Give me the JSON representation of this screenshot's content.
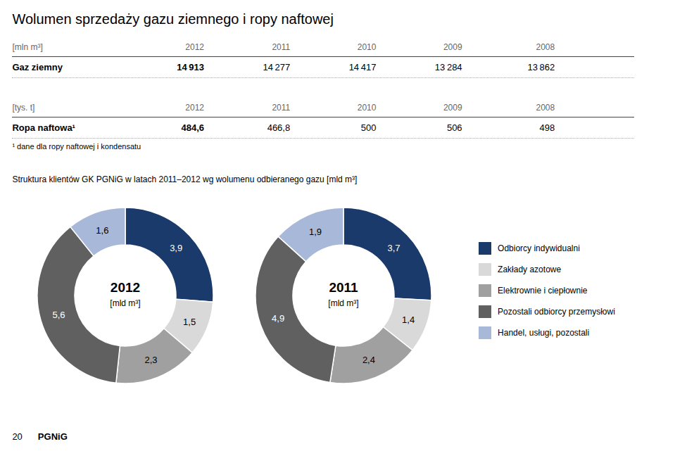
{
  "chart_data": [
    {
      "type": "table",
      "title": "Wolumen sprzedaży gazu ziemnego i ropy naftowej",
      "subtitle": "[mln m³]",
      "categories": [
        "2012",
        "2011",
        "2010",
        "2009",
        "2008"
      ],
      "series": [
        {
          "name": "Gaz ziemny",
          "values": [
            14913,
            14277,
            14417,
            13284,
            13862
          ],
          "value_labels": [
            "14 913",
            "14 277",
            "14 417",
            "13 284",
            "13 862"
          ]
        }
      ]
    },
    {
      "type": "table",
      "subtitle": "[tys. t]",
      "categories": [
        "2012",
        "2011",
        "2010",
        "2009",
        "2008"
      ],
      "series": [
        {
          "name": "Ropa naftowa¹",
          "values": [
            484.6,
            466.8,
            500,
            506,
            498
          ],
          "value_labels": [
            "484,6",
            "466,8",
            "500",
            "506",
            "498"
          ]
        }
      ],
      "annotations": [
        "¹ dane dla ropy naftowej i kondensatu"
      ]
    },
    {
      "type": "donut",
      "title": "Struktura klientów GK PGNiG w latach 2011–2012 wg wolumenu odbieranego gazu [mld m³]",
      "subtitle": "[mld m³]",
      "categories": [
        "Odbiorcy indywidualni",
        "Zakłady azotowe",
        "Elektrownie i ciepłownie",
        "Pozostali odbiorcy przemysłowi",
        "Handel, usługi, pozostali"
      ],
      "colors": [
        "#1a3a6b",
        "#d9d9d9",
        "#a0a0a0",
        "#606060",
        "#a8b8d8"
      ],
      "series": [
        {
          "name": "2012",
          "values": [
            3.9,
            1.5,
            2.3,
            5.6,
            1.6
          ],
          "value_labels": [
            "3,9",
            "1,5",
            "2,3",
            "5,6",
            "1,6"
          ]
        },
        {
          "name": "2011",
          "values": [
            3.7,
            1.4,
            2.4,
            4.9,
            1.9
          ],
          "value_labels": [
            "3,7",
            "1,4",
            "2,4",
            "4,9",
            "1,9"
          ]
        }
      ],
      "data_labels": true,
      "legend": "right",
      "annotations": [
        "20",
        "PGNiG"
      ]
    }
  ]
}
